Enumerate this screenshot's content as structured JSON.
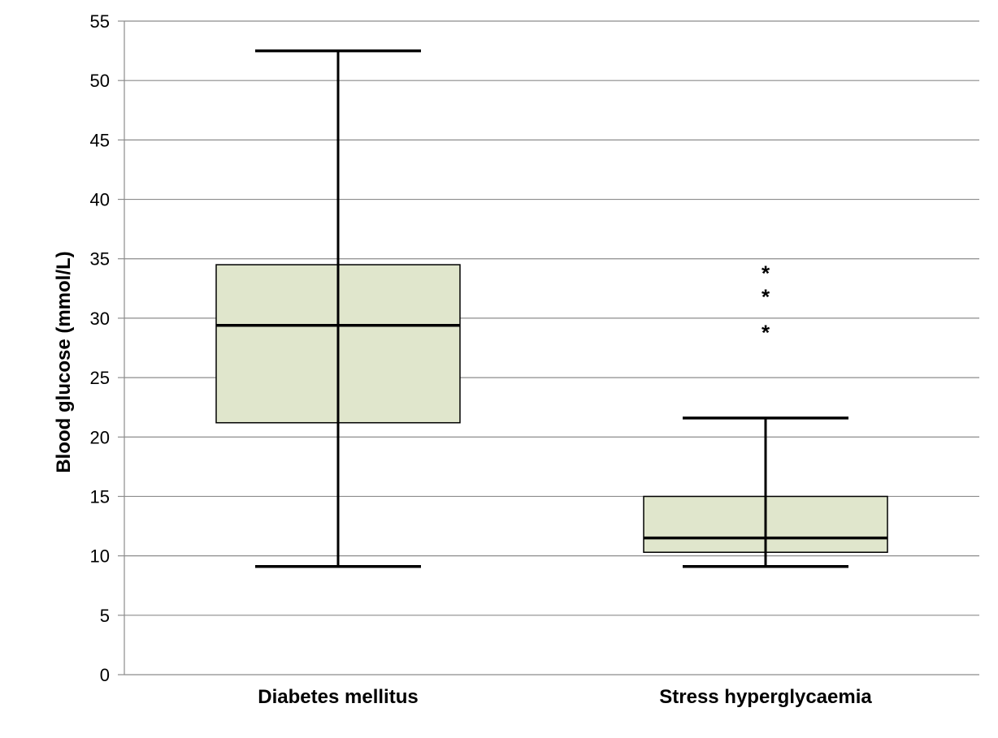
{
  "chart_data": {
    "type": "box",
    "ylabel": "Blood glucose (mmol/L)",
    "xlabel": "",
    "ylim": [
      0,
      55
    ],
    "yticks": [
      0,
      5,
      10,
      15,
      20,
      25,
      30,
      35,
      40,
      45,
      50,
      55
    ],
    "grid": "horizontal",
    "box_color": "#e0e6cc",
    "categories": [
      "Diabetes mellitus",
      "Stress hyperglycaemia"
    ],
    "boxes": [
      {
        "category": "Diabetes mellitus",
        "min": 9.1,
        "q1": 21.2,
        "median": 29.4,
        "q3": 34.5,
        "max": 52.5,
        "outliers": []
      },
      {
        "category": "Stress hyperglycaemia",
        "min": 9.1,
        "q1": 10.3,
        "median": 11.5,
        "q3": 15.0,
        "max": 21.6,
        "outliers": [
          34.0,
          32.0,
          29.0
        ],
        "outlier_marker": "*"
      }
    ]
  }
}
